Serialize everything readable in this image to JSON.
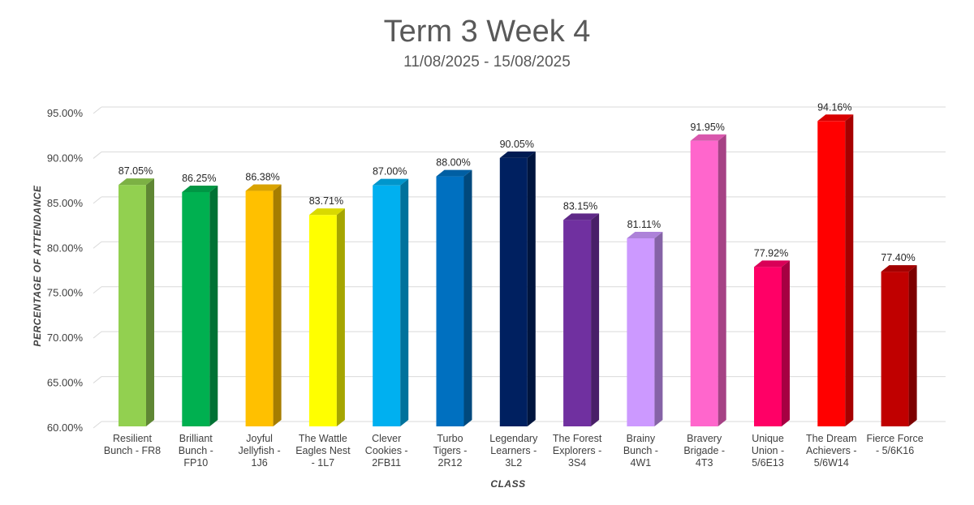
{
  "chart_data": {
    "type": "bar",
    "title": "Term 3 Week 4",
    "subtitle": "11/08/2025 - 15/08/2025",
    "xlabel": "CLASS",
    "ylabel": "PERCENTAGE OF ATTENDANCE",
    "ylim": [
      60,
      95
    ],
    "yticks": [
      "60.00%",
      "65.00%",
      "70.00%",
      "75.00%",
      "80.00%",
      "85.00%",
      "90.00%",
      "95.00%"
    ],
    "grid": true,
    "style": "3d-column",
    "categories": [
      [
        "Resilient",
        "Bunch - FR8"
      ],
      [
        "Brilliant",
        "Bunch -",
        "FP10"
      ],
      [
        "Joyful",
        "Jellyfish -",
        "1J6"
      ],
      [
        "The Wattle",
        "Eagles Nest",
        "- 1L7"
      ],
      [
        "Clever",
        "Cookies -",
        "2FB11"
      ],
      [
        "Turbo",
        "Tigers -",
        "2R12"
      ],
      [
        "Legendary",
        "Learners -",
        "3L2"
      ],
      [
        "The Forest",
        "Explorers -",
        "3S4"
      ],
      [
        "Brainy",
        "Bunch -",
        "4W1"
      ],
      [
        "Bravery",
        "Brigade -",
        "4T3"
      ],
      [
        "Unique",
        "Union -",
        "5/6E13"
      ],
      [
        "The Dream",
        "Achievers -",
        "5/6W14"
      ],
      [
        "Fierce Force",
        "- 5/6K16"
      ]
    ],
    "values": [
      87.05,
      86.25,
      86.38,
      83.71,
      87.0,
      88.0,
      90.05,
      83.15,
      81.11,
      91.95,
      77.92,
      94.16,
      77.4
    ],
    "data_labels": [
      "87.05%",
      "86.25%",
      "86.38%",
      "83.71%",
      "87.00%",
      "88.00%",
      "90.05%",
      "83.15%",
      "81.11%",
      "91.95%",
      "77.92%",
      "94.16%",
      "77.40%"
    ],
    "colors": [
      "#92d050",
      "#00b050",
      "#ffc000",
      "#ffff00",
      "#00b0f0",
      "#0070c0",
      "#002060",
      "#7030a0",
      "#cc99ff",
      "#ff66cc",
      "#ff0066",
      "#ff0000",
      "#c00000"
    ]
  }
}
